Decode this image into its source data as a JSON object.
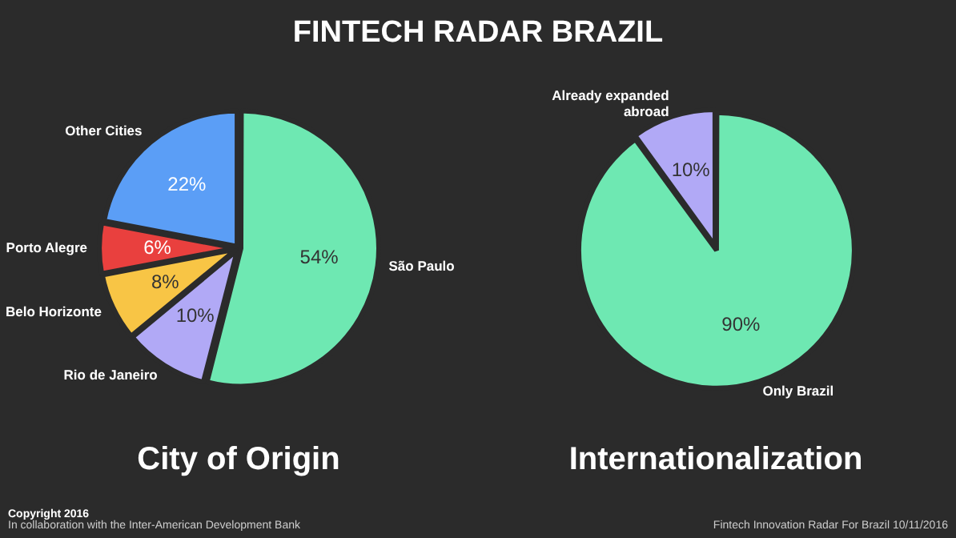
{
  "chart_data": [
    {
      "type": "pie",
      "title": "City of Origin",
      "categories": [
        "São Paulo",
        "Rio de Janeiro",
        "Belo Horizonte",
        "Porto Alegre",
        "Other Cities"
      ],
      "values": [
        54,
        10,
        8,
        6,
        22
      ],
      "value_labels": [
        "54%",
        "10%",
        "8%",
        "6%",
        "22%"
      ],
      "colors": [
        "#6ee8b2",
        "#b1a9f6",
        "#f8c545",
        "#e9403e",
        "#5b9ef6"
      ],
      "legend": false,
      "annotations": [
        "FINTECH RADAR BRAZIL",
        "Copyright 2016",
        "In collaboration with the Inter-American Development Bank"
      ]
    },
    {
      "type": "pie",
      "title": "Internationalization",
      "categories": [
        "Only Brazil",
        "Already expanded abroad"
      ],
      "values": [
        90,
        10
      ],
      "value_labels": [
        "90%",
        "10%"
      ],
      "colors": [
        "#6ee8b2",
        "#b1a9f6"
      ],
      "legend": false,
      "annotations": [
        "Fintech Innovation Radar For Brazil 10/11/2016"
      ]
    }
  ]
}
